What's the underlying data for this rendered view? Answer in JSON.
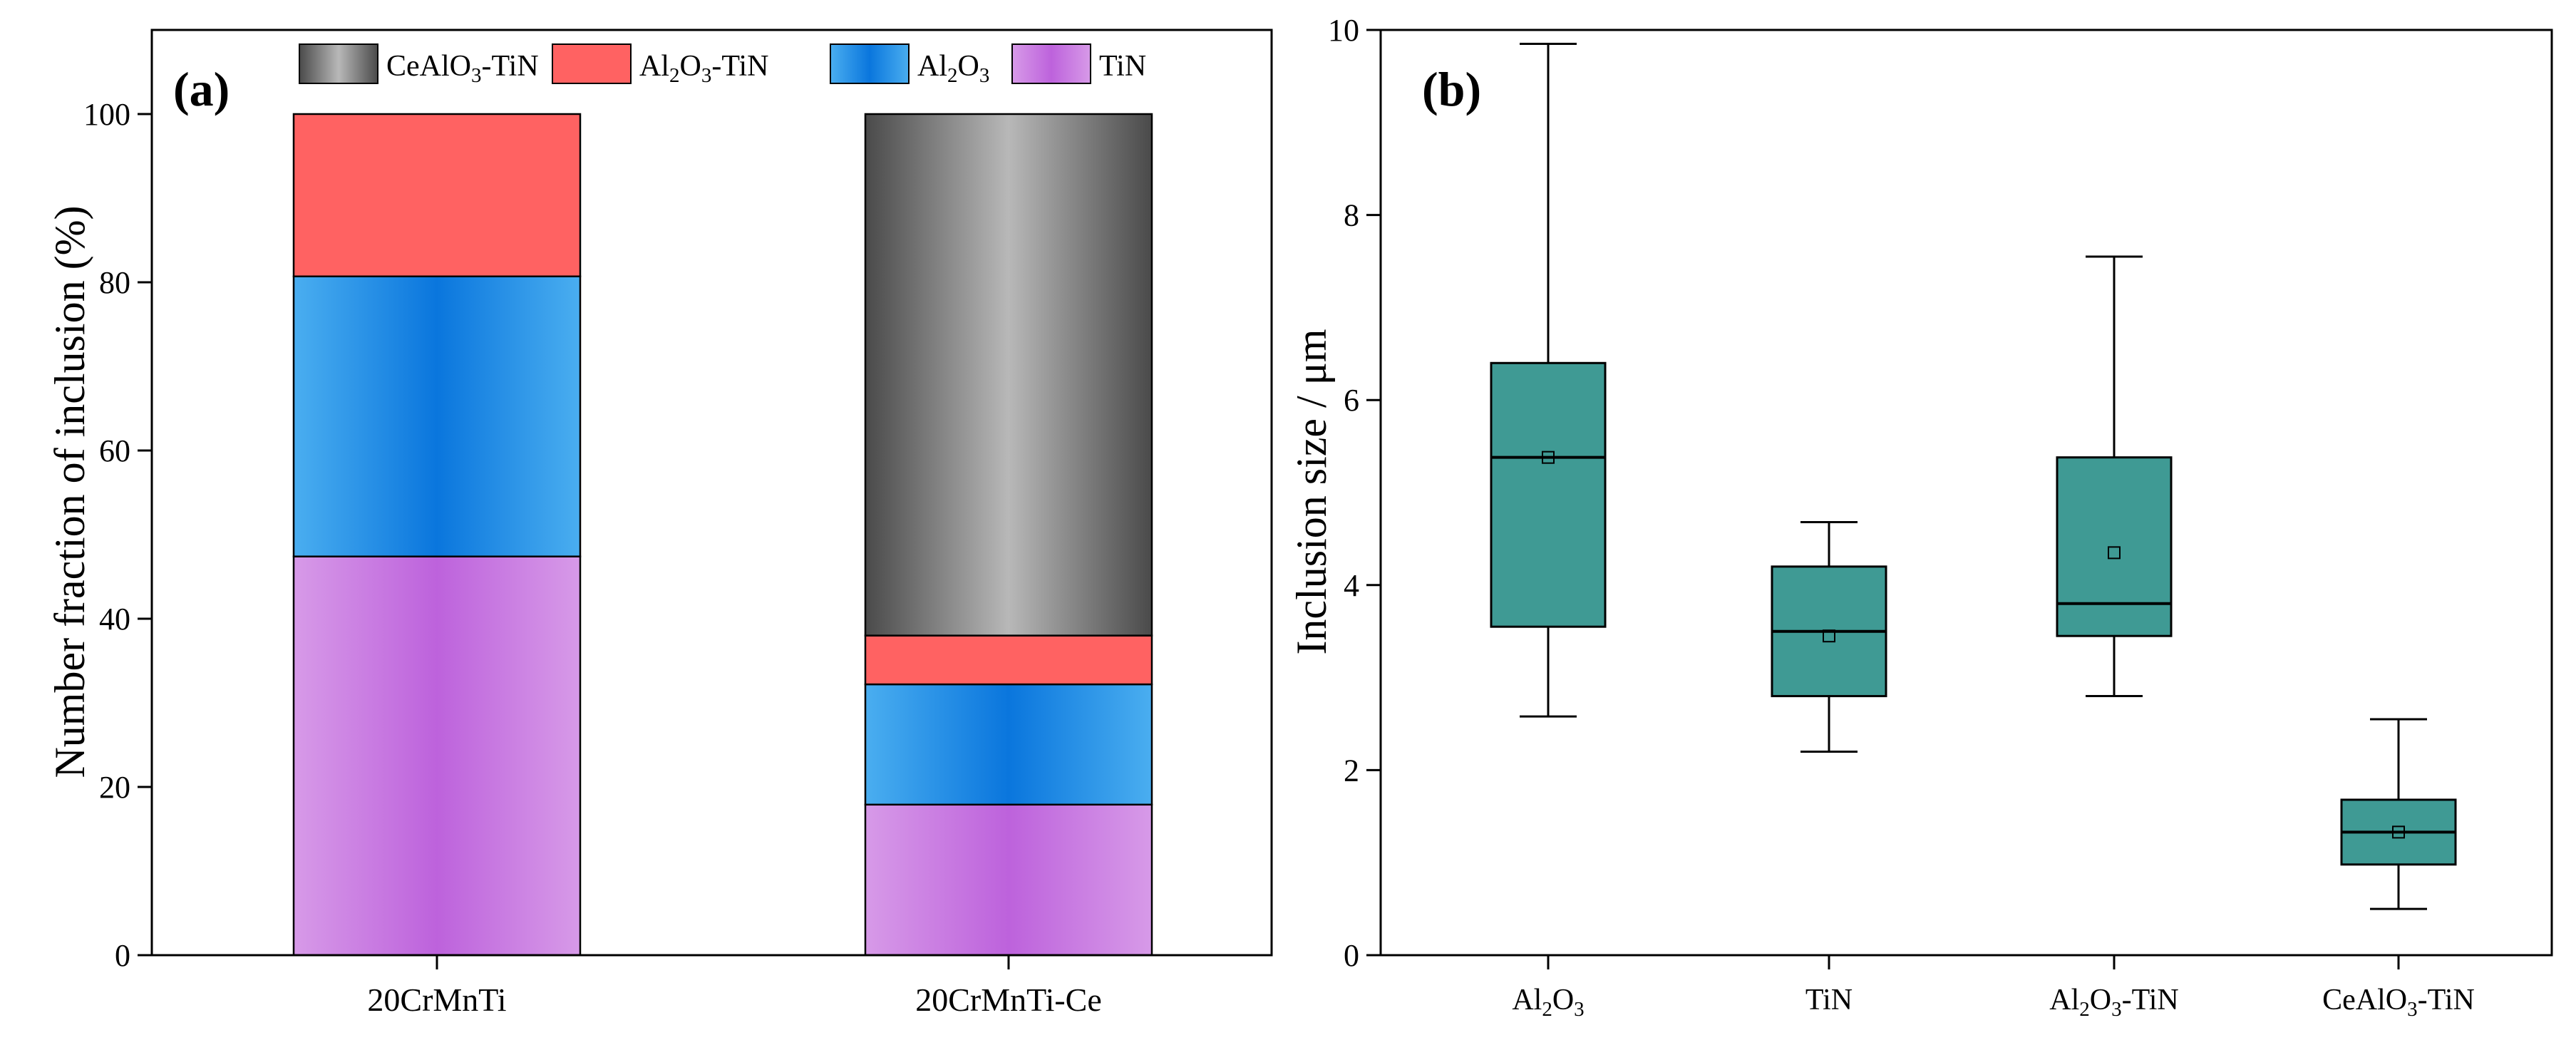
{
  "chart_data": [
    {
      "panel_label": "(a)",
      "type": "bar",
      "stacked": true,
      "categories": [
        "20CrMnTi",
        "20CrMnTi-Ce"
      ],
      "series": [
        {
          "name": "TiN",
          "legend_parts": [
            "TiN"
          ],
          "values": [
            47.4,
            17.9
          ],
          "colors": [
            "#d79ae8",
            "#bd62dc"
          ]
        },
        {
          "name": "Al2O3",
          "legend_parts": [
            "Al",
            "2",
            "O",
            "3",
            ""
          ],
          "values": [
            33.3,
            14.3
          ],
          "colors": [
            "#4aaef0",
            "#0a76dd"
          ]
        },
        {
          "name": "Al2O3-TiN",
          "legend_parts": [
            "Al",
            "2",
            "O",
            "3",
            "-TiN"
          ],
          "values": [
            19.3,
            5.8
          ],
          "colors": [
            "#ff6262",
            "#ff6262"
          ]
        },
        {
          "name": "CeAlO3-TiN",
          "legend_parts": [
            "CeAlO",
            "3",
            "-TiN"
          ],
          "values": [
            0,
            62.0
          ],
          "colors": [
            "#4a4a4a",
            "#b8b8b8"
          ]
        }
      ],
      "legend_order": [
        "CeAlO3-TiN",
        "Al2O3-TiN",
        "Al2O3",
        "TiN"
      ],
      "ylabel": "Number fraction of inclusion (%)",
      "ylim": [
        0,
        110
      ],
      "yticks": [
        0,
        20,
        40,
        60,
        80,
        100
      ]
    },
    {
      "panel_label": "(b)",
      "type": "box",
      "categories": [
        "Al2O3",
        "TiN",
        "Al2O3-TiN",
        "CeAlO3-TiN"
      ],
      "category_parts": [
        [
          "Al",
          "2",
          "O",
          "3",
          ""
        ],
        [
          "TiN"
        ],
        [
          "Al",
          "2",
          "O",
          "3",
          "-TiN"
        ],
        [
          "CeAlO",
          "3",
          "-TiN"
        ]
      ],
      "boxes": [
        {
          "min": 2.58,
          "q1": 3.55,
          "median": 5.38,
          "q3": 6.4,
          "max": 9.85,
          "mean": 5.38
        },
        {
          "min": 2.2,
          "q1": 2.8,
          "median": 3.5,
          "q3": 4.2,
          "max": 4.68,
          "mean": 3.45
        },
        {
          "min": 2.8,
          "q1": 3.45,
          "median": 3.8,
          "q3": 5.38,
          "max": 7.55,
          "mean": 4.35
        },
        {
          "min": 0.5,
          "q1": 0.98,
          "median": 1.33,
          "q3": 1.68,
          "max": 2.55,
          "mean": 1.33
        }
      ],
      "box_color": "#3f9a94",
      "ylabel": "Inclusion size / μm",
      "ylim": [
        0,
        10
      ],
      "yticks": [
        0,
        2,
        4,
        6,
        8,
        10
      ]
    }
  ]
}
